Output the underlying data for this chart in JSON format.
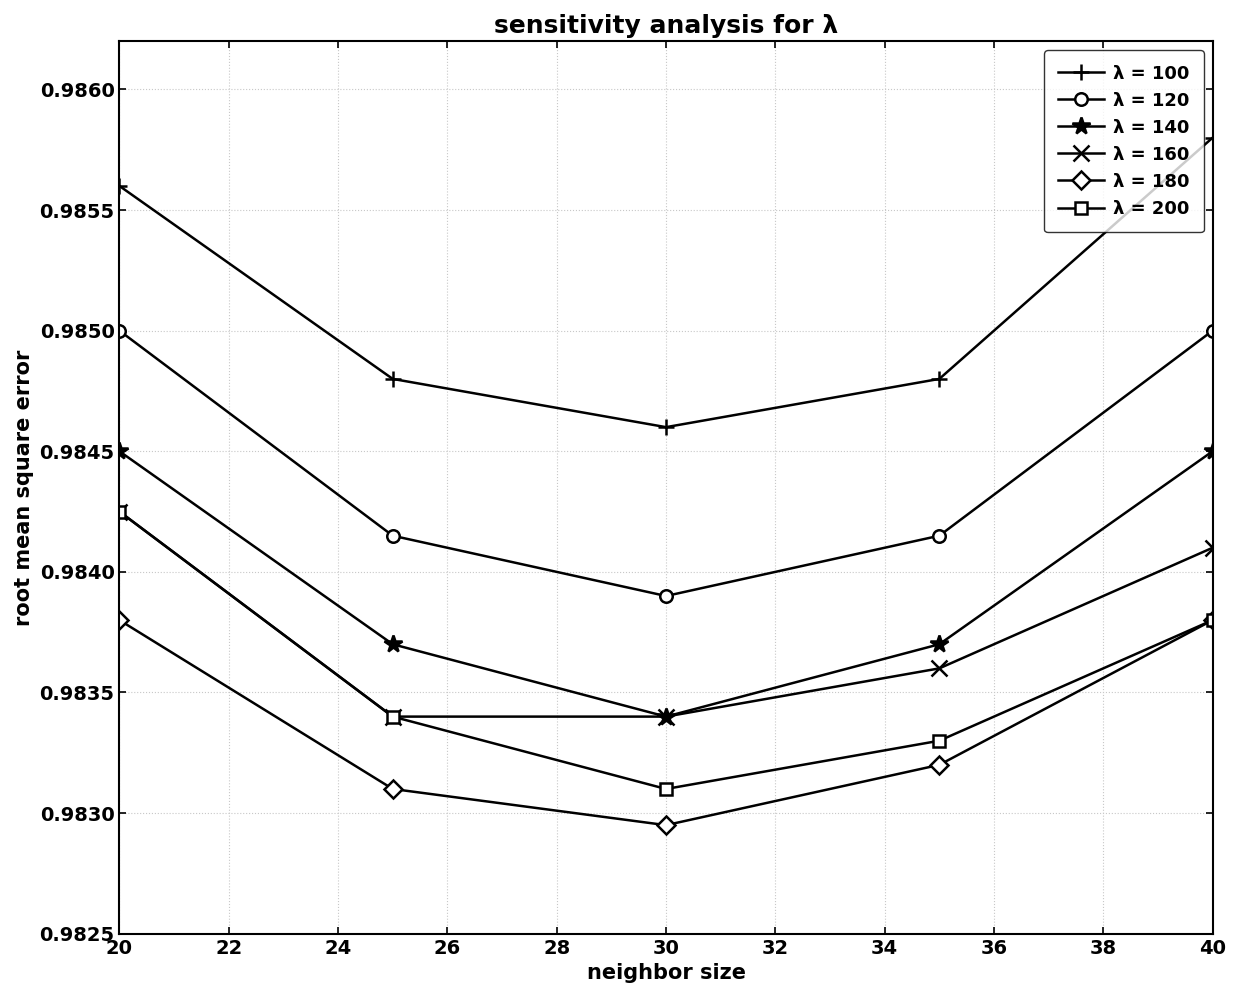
{
  "title": "sensitivity analysis for λ",
  "xlabel": "neighbor size",
  "ylabel": "root mean square error",
  "x": [
    20,
    25,
    30,
    35,
    40
  ],
  "series": [
    {
      "label": "λ = 100",
      "marker": "+",
      "values": [
        0.9856,
        0.9848,
        0.9846,
        0.9848,
        0.9858
      ]
    },
    {
      "label": "λ = 120",
      "marker": "o",
      "values": [
        0.985,
        0.98415,
        0.9839,
        0.98415,
        0.985
      ]
    },
    {
      "label": "λ = 140",
      "marker": "*",
      "values": [
        0.9845,
        0.9837,
        0.9834,
        0.9837,
        0.9845
      ]
    },
    {
      "label": "λ = 160",
      "marker": "x",
      "values": [
        0.98425,
        0.9834,
        0.9834,
        0.9836,
        0.9841
      ]
    },
    {
      "label": "λ = 180",
      "marker": "D",
      "values": [
        0.9838,
        0.9831,
        0.98295,
        0.9832,
        0.9838
      ]
    },
    {
      "label": "λ = 200",
      "marker": "s",
      "values": [
        0.98425,
        0.9834,
        0.9831,
        0.9833,
        0.9838
      ]
    }
  ],
  "xlim": [
    20,
    40
  ],
  "ylim": [
    0.9825,
    0.9862
  ],
  "xticks": [
    20,
    22,
    24,
    26,
    28,
    30,
    32,
    34,
    36,
    38,
    40
  ],
  "yticks": [
    0.9825,
    0.983,
    0.9835,
    0.984,
    0.9845,
    0.985,
    0.9855,
    0.986
  ],
  "ytick_labels": [
    "0.9825",
    "0.9830",
    "0.9835",
    "0.9840",
    "0.9845",
    "0.9850",
    "0.9855",
    "0.9860"
  ],
  "line_color": "#000000",
  "background_color": "#ffffff",
  "grid_color": "#c8c8c8",
  "title_fontsize": 18,
  "label_fontsize": 15,
  "tick_fontsize": 14,
  "legend_fontsize": 13
}
